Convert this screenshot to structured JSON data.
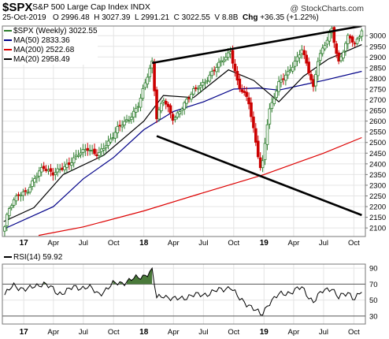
{
  "header": {
    "symbol": "$SPX",
    "name": "S&P 500 Large Cap Index",
    "exchange": "INDX",
    "watermark": "@ StockCharts.com",
    "date": "25-Oct-2019",
    "open_label": "O",
    "open": "2996.48",
    "high_label": "H",
    "high": "3027.39",
    "low_label": "L",
    "low": "2991.21",
    "close_label": "C",
    "close": "3022.55",
    "volume_label": "V",
    "volume": "8.8B",
    "change_label": "Chg",
    "change": "+36.35 (+1.22%)"
  },
  "legend": {
    "price": "$SPX (Weekly) 3022.55",
    "ma50": "MA(50) 2833.36",
    "ma200": "MA(200) 2522.68",
    "ma20": "MA(20) 2958.49"
  },
  "rsi_legend": "RSI(14) 59.92",
  "colors": {
    "up": "#2e7d2e",
    "down": "#cc0000",
    "ma50": "#000088",
    "ma200": "#dd0000",
    "ma20": "#000000",
    "trend": "#000000",
    "rsi_fill": "#4a7a3a",
    "grid": "#e4e4e4"
  },
  "chart_data": [
    {
      "type": "candlestick",
      "title": "$SPX S&P 500 Large Cap Index INDX",
      "interval": "weekly",
      "x_tick_labels": [
        "17",
        "Apr",
        "Jul",
        "Oct",
        "18",
        "Apr",
        "Jul",
        "Oct",
        "19",
        "Apr",
        "Jul",
        "Oct"
      ],
      "y_ticks": [
        2100,
        2150,
        2200,
        2250,
        2300,
        2350,
        2400,
        2450,
        2500,
        2550,
        2600,
        2650,
        2700,
        2750,
        2800,
        2850,
        2900,
        2950,
        3000
      ],
      "ylim": [
        2060,
        3045
      ],
      "series": [
        {
          "name": "$SPX (Weekly)",
          "kind": "close",
          "points": [
            [
              "2016-11-01",
              2085
            ],
            [
              "2016-11-15",
              2180
            ],
            [
              "2016-12-15",
              2260
            ],
            [
              "2017-01-15",
              2275
            ],
            [
              "2017-02-15",
              2360
            ],
            [
              "2017-03-01",
              2390
            ],
            [
              "2017-04-01",
              2350
            ],
            [
              "2017-05-15",
              2400
            ],
            [
              "2017-06-15",
              2440
            ],
            [
              "2017-07-15",
              2475
            ],
            [
              "2017-08-15",
              2440
            ],
            [
              "2017-09-15",
              2500
            ],
            [
              "2017-10-15",
              2575
            ],
            [
              "2017-11-15",
              2600
            ],
            [
              "2017-12-15",
              2680
            ],
            [
              "2018-01-26",
              2872
            ],
            [
              "2018-02-09",
              2620
            ],
            [
              "2018-03-01",
              2710
            ],
            [
              "2018-04-01",
              2600
            ],
            [
              "2018-05-01",
              2680
            ],
            [
              "2018-06-01",
              2740
            ],
            [
              "2018-07-01",
              2780
            ],
            [
              "2018-08-15",
              2860
            ],
            [
              "2018-09-21",
              2930
            ],
            [
              "2018-10-15",
              2760
            ],
            [
              "2018-11-15",
              2700
            ],
            [
              "2018-12-24",
              2350
            ],
            [
              "2019-01-15",
              2640
            ],
            [
              "2019-02-15",
              2780
            ],
            [
              "2019-03-15",
              2820
            ],
            [
              "2019-04-26",
              2940
            ],
            [
              "2019-05-31",
              2752
            ],
            [
              "2019-06-15",
              2900
            ],
            [
              "2019-07-26",
              3025
            ],
            [
              "2019-08-15",
              2870
            ],
            [
              "2019-09-15",
              3005
            ],
            [
              "2019-10-04",
              2952
            ],
            [
              "2019-10-25",
              3022.55
            ]
          ]
        },
        {
          "name": "MA(50)",
          "value": 2833.36,
          "points": [
            [
              "2016-11-01",
              2095
            ],
            [
              "2017-04-01",
              2200
            ],
            [
              "2017-07-01",
              2330
            ],
            [
              "2017-10-01",
              2430
            ],
            [
              "2018-01-01",
              2560
            ],
            [
              "2018-04-01",
              2645
            ],
            [
              "2018-07-01",
              2690
            ],
            [
              "2018-10-01",
              2750
            ],
            [
              "2018-12-15",
              2755
            ],
            [
              "2019-02-15",
              2745
            ],
            [
              "2019-05-01",
              2770
            ],
            [
              "2019-07-01",
              2790
            ],
            [
              "2019-10-25",
              2833
            ]
          ]
        },
        {
          "name": "MA(200)",
          "value": 2522.68,
          "points": [
            [
              "2017-02-15",
              2065
            ],
            [
              "2017-07-01",
              2105
            ],
            [
              "2018-01-01",
              2180
            ],
            [
              "2018-07-01",
              2265
            ],
            [
              "2019-01-01",
              2350
            ],
            [
              "2019-07-01",
              2450
            ],
            [
              "2019-10-25",
              2523
            ]
          ]
        },
        {
          "name": "MA(20)",
          "value": 2958.49,
          "points": [
            [
              "2016-11-01",
              2130
            ],
            [
              "2017-02-01",
              2195
            ],
            [
              "2017-05-01",
              2350
            ],
            [
              "2017-09-01",
              2440
            ],
            [
              "2018-01-01",
              2600
            ],
            [
              "2018-03-01",
              2720
            ],
            [
              "2018-06-01",
              2710
            ],
            [
              "2018-09-15",
              2840
            ],
            [
              "2018-12-01",
              2790
            ],
            [
              "2019-02-15",
              2690
            ],
            [
              "2019-05-01",
              2810
            ],
            [
              "2019-07-15",
              2890
            ],
            [
              "2019-10-25",
              2958
            ]
          ]
        }
      ],
      "trendlines": [
        {
          "from": [
            "2018-01-26",
            2872
          ],
          "to": [
            "2019-10-25",
            3045
          ]
        },
        {
          "from": [
            "2018-02-09",
            2530
          ],
          "to": [
            "2019-10-25",
            2160
          ]
        }
      ]
    },
    {
      "type": "line",
      "title": "RSI(14)",
      "value": 59.92,
      "x_tick_labels": [
        "17",
        "Apr",
        "Jul",
        "Oct",
        "18",
        "Apr",
        "Jul",
        "Oct",
        "19",
        "Apr",
        "Jul",
        "Oct"
      ],
      "y_ticks": [
        30,
        50,
        70,
        90
      ],
      "ylim": [
        20,
        95
      ],
      "reference_lines": [
        30,
        70
      ],
      "series": [
        {
          "name": "RSI(14)",
          "points": [
            [
              "2016-11-01",
              55
            ],
            [
              "2016-12-01",
              68
            ],
            [
              "2017-01-15",
              63
            ],
            [
              "2017-03-01",
              72
            ],
            [
              "2017-04-15",
              58
            ],
            [
              "2017-06-01",
              65
            ],
            [
              "2017-07-15",
              67
            ],
            [
              "2017-08-15",
              57
            ],
            [
              "2017-10-01",
              70
            ],
            [
              "2017-11-15",
              74
            ],
            [
              "2017-12-15",
              78
            ],
            [
              "2018-01-26",
              86
            ],
            [
              "2018-02-09",
              52
            ],
            [
              "2018-03-01",
              57
            ],
            [
              "2018-04-01",
              50
            ],
            [
              "2018-05-15",
              55
            ],
            [
              "2018-06-15",
              56
            ],
            [
              "2018-08-01",
              60
            ],
            [
              "2018-09-21",
              67
            ],
            [
              "2018-10-15",
              52
            ],
            [
              "2018-11-15",
              45
            ],
            [
              "2018-12-24",
              30
            ],
            [
              "2019-01-15",
              47
            ],
            [
              "2019-02-15",
              56
            ],
            [
              "2019-04-26",
              65
            ],
            [
              "2019-05-31",
              48
            ],
            [
              "2019-07-01",
              62
            ],
            [
              "2019-07-26",
              66
            ],
            [
              "2019-08-15",
              52
            ],
            [
              "2019-09-15",
              60
            ],
            [
              "2019-10-04",
              52
            ],
            [
              "2019-10-25",
              60
            ]
          ]
        }
      ]
    }
  ]
}
